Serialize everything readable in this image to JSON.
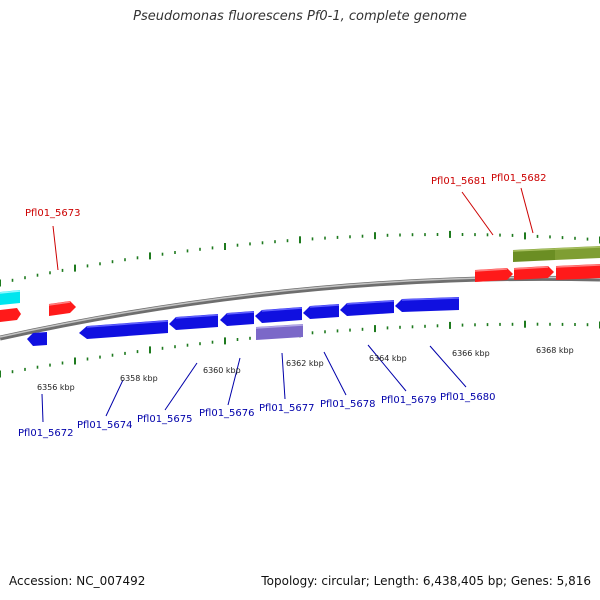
{
  "title": "Pseudomonas fluorescens Pf0-1, complete genome",
  "accession": "Accession: NC_007492",
  "summary": "Topology: circular; Length: 6,438,405 bp; Genes: 5,816",
  "colors": {
    "backbone": "#8a8a8a",
    "forward_gene": "#ff1a1a",
    "reverse_gene": "#1010e0",
    "forward_label": "#cc0000",
    "reverse_label": "#0000aa",
    "tick": "#1e7a1e",
    "olive_feature": "#6b8e23",
    "cyan_feature": "#00e5ee",
    "lavender_feature": "#7b68c8"
  },
  "scale_ticks": [
    "6356 kbp",
    "6358 kbp",
    "6360 kbp",
    "6362 kbp",
    "6364 kbp",
    "6366 kbp",
    "6368 kbp"
  ],
  "forward_genes": [
    "Pfl01_5673",
    "Pfl01_5681",
    "Pfl01_5682"
  ],
  "reverse_genes": [
    "Pfl01_5672",
    "Pfl01_5674",
    "Pfl01_5675",
    "Pfl01_5676",
    "Pfl01_5677",
    "Pfl01_5678",
    "Pfl01_5679",
    "Pfl01_5680"
  ]
}
